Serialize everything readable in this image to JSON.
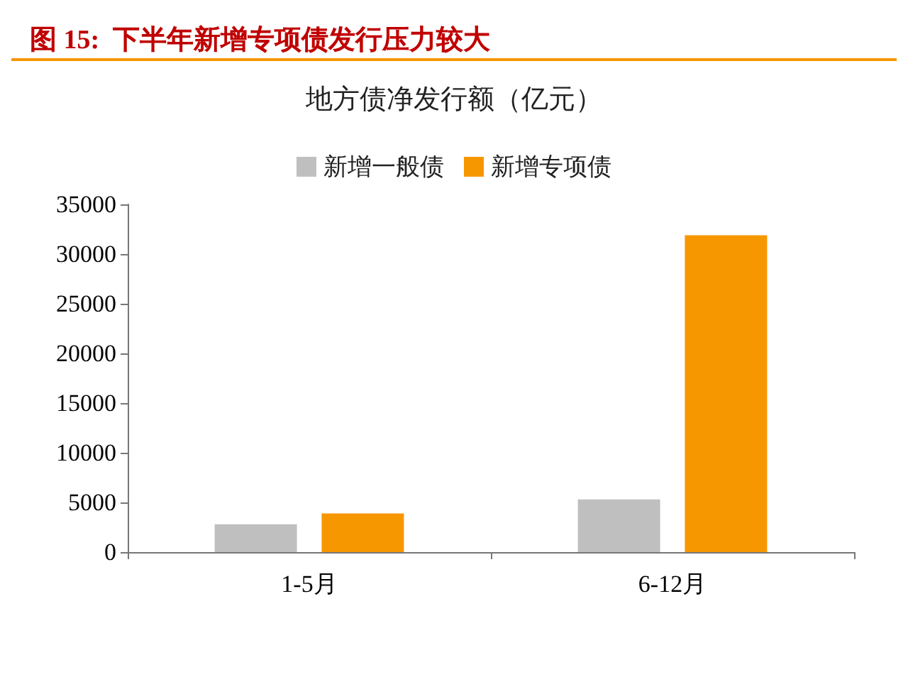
{
  "chart_data": {
    "type": "bar",
    "title": "图 15:  下半年新增专项债发行压力较大",
    "subtitle": "地方债净发行额（亿元）",
    "categories": [
      "1-5月",
      "6-12月"
    ],
    "series": [
      {
        "name": "新增一般债",
        "color": "#bfbfbf",
        "values": [
          2800,
          5300
        ]
      },
      {
        "name": "新增专项债",
        "color": "#f79700",
        "values": [
          3900,
          31900
        ]
      }
    ],
    "ylim": [
      0,
      35000
    ],
    "yticks": [
      0,
      5000,
      10000,
      15000,
      20000,
      25000,
      30000,
      35000
    ],
    "grid": false,
    "legend": "top"
  }
}
